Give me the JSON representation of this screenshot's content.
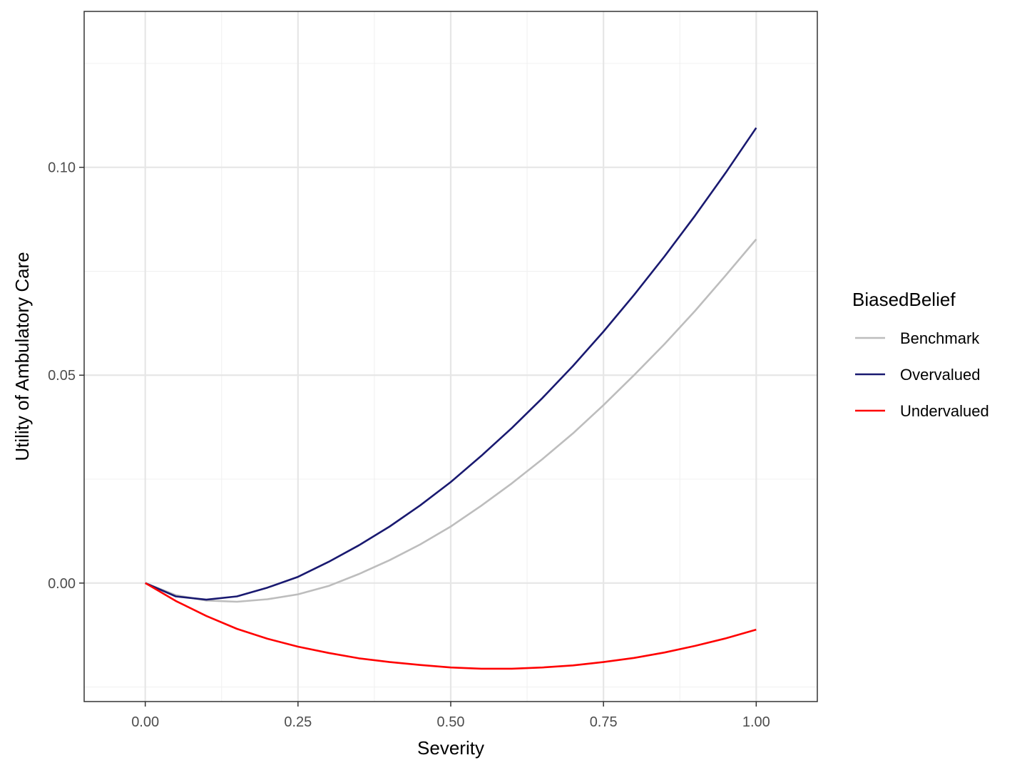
{
  "chart_data": {
    "type": "line",
    "xlabel": "Severity",
    "ylabel": "Utility of Ambulatory Care",
    "xlim": [
      -0.1,
      1.1
    ],
    "ylim": [
      -0.0285,
      0.1375
    ],
    "x_ticks": [
      0.0,
      0.25,
      0.5,
      0.75,
      1.0
    ],
    "x_tick_labels": [
      "0.00",
      "0.25",
      "0.50",
      "0.75",
      "1.00"
    ],
    "y_ticks": [
      0.0,
      0.05,
      0.1
    ],
    "y_tick_labels": [
      "0.00",
      "0.05",
      "0.10"
    ],
    "x_minor": [
      0.125,
      0.375,
      0.625,
      0.875
    ],
    "y_minor": [
      -0.025,
      0.025,
      0.075,
      0.125
    ],
    "grid": true,
    "legend_position": "right",
    "legend_title": "BiasedBelief",
    "series": [
      {
        "name": "Benchmark",
        "color": "#bdbdbd",
        "x": [
          0.0,
          0.05,
          0.1,
          0.15,
          0.2,
          0.25,
          0.3,
          0.35,
          0.4,
          0.45,
          0.5,
          0.55,
          0.6,
          0.65,
          0.7,
          0.75,
          0.8,
          0.85,
          0.9,
          0.95,
          1.0
        ],
        "y": [
          0.0,
          -0.0029,
          -0.0042,
          -0.0045,
          -0.0039,
          -0.0027,
          -0.0007,
          0.0022,
          0.0055,
          0.0093,
          0.0136,
          0.0186,
          0.024,
          0.0298,
          0.036,
          0.0428,
          0.05,
          0.0575,
          0.0655,
          0.074,
          0.0827
        ]
      },
      {
        "name": "Overvalued",
        "color": "#191970",
        "x": [
          0.0,
          0.05,
          0.1,
          0.15,
          0.2,
          0.25,
          0.3,
          0.35,
          0.4,
          0.45,
          0.5,
          0.55,
          0.6,
          0.65,
          0.7,
          0.75,
          0.8,
          0.85,
          0.9,
          0.95,
          1.0
        ],
        "y": [
          0.0,
          -0.0032,
          -0.004,
          -0.0032,
          -0.0011,
          0.0015,
          0.0051,
          0.0091,
          0.0136,
          0.0187,
          0.0243,
          0.0306,
          0.0373,
          0.0445,
          0.0522,
          0.0605,
          0.0693,
          0.0786,
          0.0884,
          0.0987,
          0.1095
        ]
      },
      {
        "name": "Undervalued",
        "color": "#ff0000",
        "x": [
          0.0,
          0.05,
          0.1,
          0.15,
          0.2,
          0.25,
          0.3,
          0.35,
          0.4,
          0.45,
          0.5,
          0.55,
          0.6,
          0.65,
          0.7,
          0.75,
          0.8,
          0.85,
          0.9,
          0.95,
          1.0
        ],
        "y": [
          0.0,
          -0.0043,
          -0.0079,
          -0.011,
          -0.0134,
          -0.0153,
          -0.0168,
          -0.0181,
          -0.019,
          -0.0197,
          -0.0203,
          -0.0206,
          -0.0206,
          -0.0203,
          -0.0198,
          -0.019,
          -0.018,
          -0.0167,
          -0.0151,
          -0.0133,
          -0.0112
        ]
      }
    ]
  }
}
